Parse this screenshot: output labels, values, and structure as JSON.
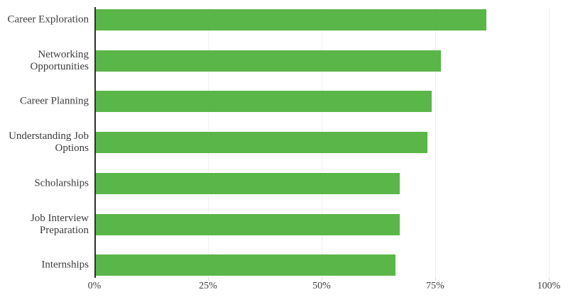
{
  "chart_data": {
    "type": "bar",
    "orientation": "horizontal",
    "title": "",
    "xlabel": "",
    "ylabel": "",
    "categories": [
      "Career Exploration",
      "Networking Opportunities",
      "Career Planning",
      "Understanding Job Options",
      "Scholarships",
      "Job Interview Preparation",
      "Internships"
    ],
    "values": [
      86,
      76,
      74,
      73,
      67,
      67,
      66
    ],
    "unit": "%",
    "xlim": [
      0,
      100
    ],
    "x_tick_labels": [
      "0%",
      "25%",
      "50%",
      "75%",
      "100%"
    ],
    "x_tick_values": [
      0,
      25,
      50,
      75,
      100
    ],
    "legend": null,
    "grid": "vertical-light",
    "bar_color": "#5ab648",
    "gridline_color": "#f0f0f0",
    "axis_line_color": "#2e2e2e",
    "text_color": "#3c3c3c",
    "background_color": "#ffffff"
  }
}
